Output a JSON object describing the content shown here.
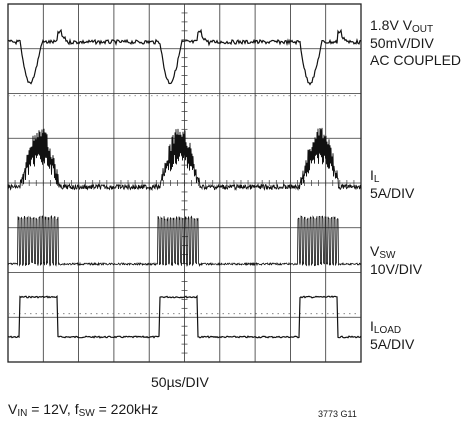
{
  "chart_data": {
    "type": "line",
    "xlabel": "50µs/DIV",
    "grid": true,
    "traces": [
      {
        "id": "vout",
        "label_main": "1.8V V",
        "label_sub": "OUT",
        "lines": [
          "50mV/DIV",
          "AC COUPLED"
        ]
      },
      {
        "id": "il",
        "label_main": "I",
        "label_sub": "L",
        "lines": [
          "5A/DIV"
        ]
      },
      {
        "id": "vsw",
        "label_main": "V",
        "label_sub": "SW",
        "lines": [
          "10V/DIV"
        ]
      },
      {
        "id": "iload",
        "label_main": "I",
        "label_sub": "LOAD",
        "lines": [
          "5A/DIV"
        ]
      }
    ]
  },
  "conditions": {
    "vin_main": "V",
    "vin_sub": "IN",
    "vin_val": " = 12V, f",
    "fsw_sub": "SW",
    "fsw_val": " = 220kHz"
  },
  "figure_id": "3773 G11"
}
